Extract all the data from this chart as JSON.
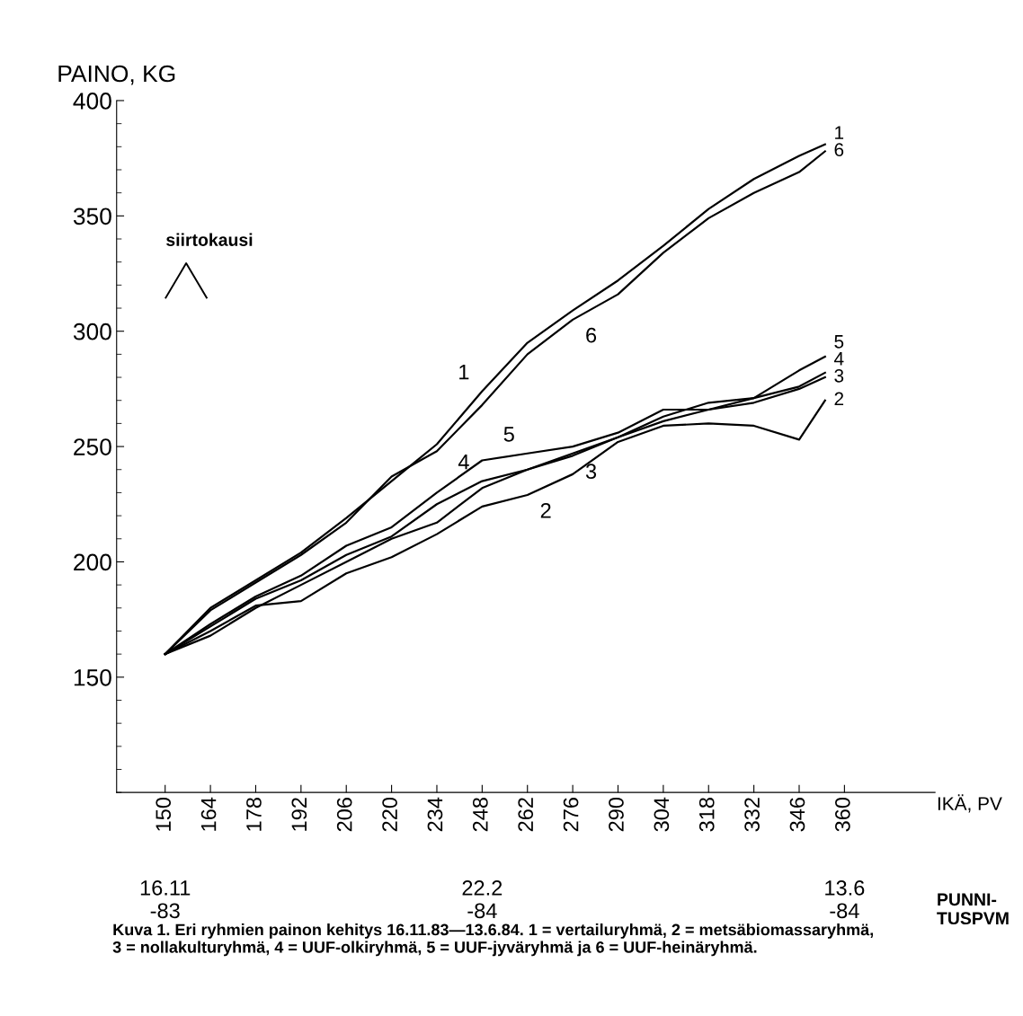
{
  "chart_data": {
    "type": "line",
    "ylabel": "PAINO, KG",
    "xlabel": "IKÄ, PV",
    "x": [
      150,
      164,
      178,
      192,
      206,
      220,
      234,
      248,
      262,
      276,
      290,
      304,
      318,
      332,
      346,
      354
    ],
    "xlim": [
      135,
      388
    ],
    "xticks": [
      150,
      164,
      178,
      192,
      206,
      220,
      234,
      248,
      262,
      276,
      290,
      304,
      318,
      332,
      346,
      360
    ],
    "ylim": [
      100,
      400
    ],
    "yticks": [
      150,
      200,
      250,
      300,
      350,
      400
    ],
    "grid": false,
    "legend": false,
    "marker": "none",
    "line_style": "solid",
    "series": [
      {
        "name": "1",
        "color": "#000000",
        "values": [
          160,
          180,
          192,
          204,
          219,
          235,
          251,
          274,
          295,
          309,
          322,
          337,
          353,
          366,
          376,
          381
        ]
      },
      {
        "name": "2",
        "color": "#000000",
        "values": [
          160,
          170,
          181,
          183,
          195,
          202,
          212,
          224,
          229,
          238,
          252,
          259,
          260,
          259,
          253,
          270
        ]
      },
      {
        "name": "3",
        "color": "#000000",
        "values": [
          160,
          168,
          180,
          190,
          200,
          210,
          217,
          232,
          240,
          246,
          254,
          261,
          266,
          269,
          275,
          280
        ]
      },
      {
        "name": "4",
        "color": "#000000",
        "values": [
          160,
          172,
          184,
          192,
          203,
          211,
          225,
          235,
          240,
          247,
          254,
          263,
          269,
          271,
          276,
          282
        ]
      },
      {
        "name": "5",
        "color": "#000000",
        "values": [
          160,
          173,
          185,
          194,
          207,
          215,
          230,
          244,
          247,
          250,
          256,
          266,
          266,
          271,
          283,
          289
        ]
      },
      {
        "name": "6",
        "color": "#000000",
        "values": [
          160,
          179,
          191,
          203,
          217,
          237,
          248,
          268,
          290,
          305,
          316,
          334,
          349,
          360,
          369,
          378
        ]
      }
    ],
    "annotations": [
      "siirtokausi",
      "16.11\n-83",
      "22.2\n-84",
      "13.6\n-84",
      "PUNNI-\nTUSPVM",
      "Kuva 1. Eri ryhmien painon kehitys 16.11.83—13.6.84. 1 = vertailuryhmä, 2 = metsäbiomassaryhmä,\n3 = nollakulturyhmä, 4 = UUF-olkiryhmä, 5 = UUF-jyväryhmä ja 6 = UUF-heinäryhmä."
    ]
  }
}
